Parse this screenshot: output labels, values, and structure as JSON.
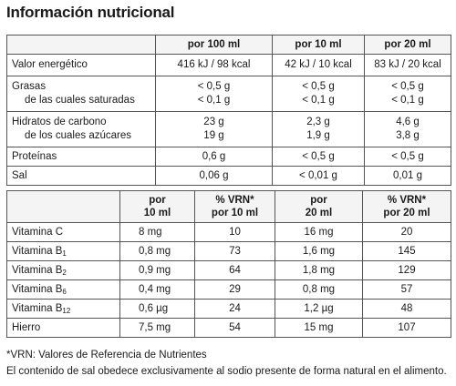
{
  "title": "Información nutricional",
  "table1": {
    "headers": [
      "",
      "por 100 ml",
      "por 10 ml",
      "por 20 ml"
    ],
    "rows": [
      {
        "l1": "Valor energético",
        "l2": "",
        "a1": "416 kJ / 98 kcal",
        "a2": "",
        "b1": "42 kJ / 10 kcal",
        "b2": "",
        "c1": "83 kJ / 20 kcal",
        "c2": ""
      },
      {
        "l1": "Grasas",
        "l2": "de las cuales saturadas",
        "a1": "< 0,5 g",
        "a2": "< 0,1 g",
        "b1": "< 0,5 g",
        "b2": "< 0,1 g",
        "c1": "< 0,5 g",
        "c2": "< 0,1 g"
      },
      {
        "l1": "Hidratos de carbono",
        "l2": "de los cuales azúcares",
        "a1": "23 g",
        "a2": "19 g",
        "b1": "2,3 g",
        "b2": "1,9 g",
        "c1": "4,6 g",
        "c2": "3,8 g"
      },
      {
        "l1": "Proteínas",
        "l2": "",
        "a1": "0,6 g",
        "a2": "",
        "b1": "< 0,5 g",
        "b2": "",
        "c1": "< 0,5 g",
        "c2": ""
      },
      {
        "l1": "Sal",
        "l2": "",
        "a1": "0,06 g",
        "a2": "",
        "b1": "< 0,01 g",
        "b2": "",
        "c1": "0,01 g",
        "c2": ""
      }
    ]
  },
  "table2": {
    "headers": [
      {
        "l1": "",
        "l2": ""
      },
      {
        "l1": "por",
        "l2": "10 ml"
      },
      {
        "l1": "% VRN*",
        "l2": "por 10 ml"
      },
      {
        "l1": "por",
        "l2": "20 ml"
      },
      {
        "l1": "% VRN*",
        "l2": "por 20 ml"
      }
    ],
    "rows": [
      {
        "name": "Vitamina C",
        "sub": "",
        "q10": "8 mg",
        "v10": "10",
        "q20": "16 mg",
        "v20": "20"
      },
      {
        "name": "Vitamina B",
        "sub": "1",
        "q10": "0,8 mg",
        "v10": "73",
        "q20": "1,6 mg",
        "v20": "145"
      },
      {
        "name": "Vitamina B",
        "sub": "2",
        "q10": "0,9 mg",
        "v10": "64",
        "q20": "1,8 mg",
        "v20": "129"
      },
      {
        "name": "Vitamina B",
        "sub": "6",
        "q10": "0,4 mg",
        "v10": "29",
        "q20": "0,8 mg",
        "v20": "57"
      },
      {
        "name": "Vitamina B",
        "sub": "12",
        "q10": "0,6 µg",
        "v10": "24",
        "q20": "1,2 µg",
        "v20": "48"
      },
      {
        "name": "Hierro",
        "sub": "",
        "q10": "7,5 mg",
        "v10": "54",
        "q20": "15 mg",
        "v20": "107"
      }
    ]
  },
  "footnotes": {
    "vrn": "*VRN: Valores de Referencia de Nutrientes",
    "salt": "El contenido de sal obedece exclusivamente al sodio presente de forma natural en el alimento."
  }
}
